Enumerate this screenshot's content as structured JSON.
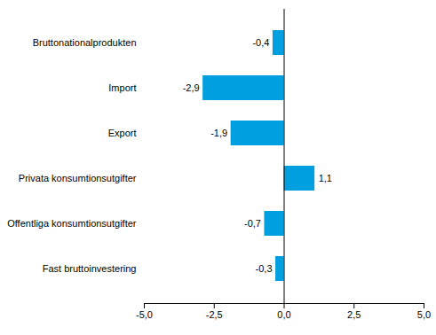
{
  "chart_data": {
    "type": "bar",
    "orientation": "horizontal",
    "categories": [
      "Bruttonationalprodukten",
      "Import",
      "Export",
      "Privata konsumtionsutgifter",
      "Offentliga konsumtionsutgifter",
      "Fast bruttoinvestering"
    ],
    "values": [
      -0.4,
      -2.9,
      -1.9,
      1.1,
      -0.7,
      -0.3
    ],
    "value_labels": [
      "-0,4",
      "-2,9",
      "-1,9",
      "1,1",
      "-0,7",
      "-0,3"
    ],
    "color": "#009fdf",
    "xlim": [
      -5,
      5
    ],
    "xticks": [
      {
        "value": -5,
        "label": "-5,0"
      },
      {
        "value": -2.5,
        "label": "-2,5"
      },
      {
        "value": 0,
        "label": "0,0"
      },
      {
        "value": 2.5,
        "label": "2,5"
      },
      {
        "value": 5,
        "label": "5,0"
      }
    ],
    "grid": false,
    "data_labels": true
  }
}
